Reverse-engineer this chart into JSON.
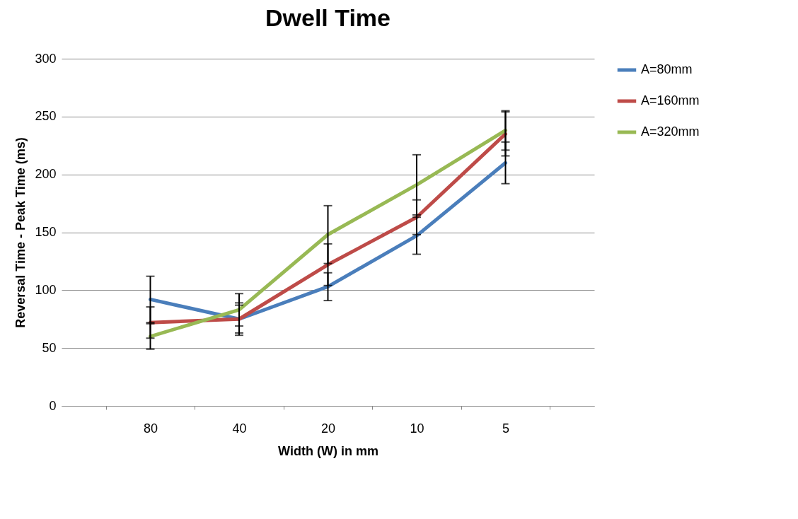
{
  "chart_data": {
    "type": "line",
    "title": "Dwell Time",
    "xlabel": "Width (W) in mm",
    "ylabel": "Reversal Time - Peak Time (ms)",
    "categories": [
      "80",
      "40",
      "20",
      "10",
      "5"
    ],
    "series": [
      {
        "name": "A=80mm",
        "color": "#4a7ebb",
        "values": [
          92,
          75,
          103,
          147,
          210
        ],
        "errors": [
          20,
          12,
          12,
          16,
          18
        ]
      },
      {
        "name": "A=160mm",
        "color": "#be4b48",
        "values": [
          72,
          75,
          122,
          163,
          235
        ],
        "errors": [
          13.5,
          14,
          18,
          15,
          19
        ]
      },
      {
        "name": "A=320mm",
        "color": "#98b954",
        "values": [
          60,
          83,
          148,
          191,
          238
        ],
        "errors": [
          11,
          14,
          25,
          26,
          17
        ]
      }
    ],
    "ylim": [
      0,
      300
    ],
    "yticks": [
      0,
      50,
      100,
      150,
      200,
      250,
      300
    ],
    "grid": "y",
    "legend": "right",
    "marker": "none",
    "line_style": "solid"
  }
}
